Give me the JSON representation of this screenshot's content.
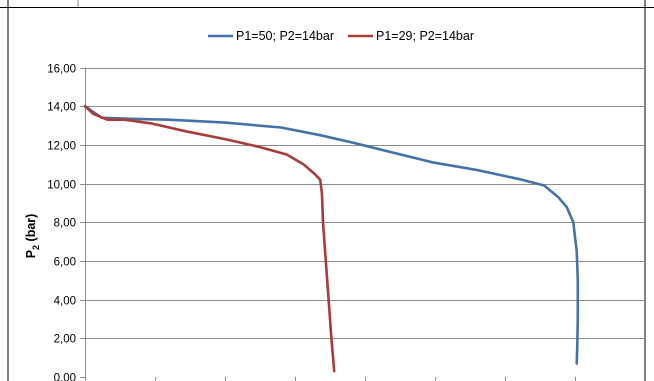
{
  "chart_data": {
    "type": "line",
    "title": "",
    "xlabel": "",
    "ylabel": "P",
    "ylabel_subscript": "2",
    "ylabel_unit": " (bar)",
    "ylim": [
      0,
      16
    ],
    "xlim": [
      0,
      1
    ],
    "yticks": [
      "0,00",
      "2,00",
      "4,00",
      "6,00",
      "8,00",
      "10,00",
      "12,00",
      "14,00",
      "16,00"
    ],
    "grid": true,
    "legend_position": "top",
    "series": [
      {
        "name": "P1=50; P2=14bar",
        "color": "#4472a8",
        "x": [
          0,
          0.03,
          0.08,
          0.15,
          0.25,
          0.35,
          0.42,
          0.48,
          0.55,
          0.62,
          0.7,
          0.78,
          0.82,
          0.845,
          0.86,
          0.872,
          0.878,
          0.88,
          0.88,
          0.879,
          0.878
        ],
        "y": [
          14.0,
          13.4,
          13.35,
          13.3,
          13.15,
          12.9,
          12.5,
          12.1,
          11.6,
          11.1,
          10.7,
          10.2,
          9.9,
          9.3,
          8.8,
          8.0,
          6.5,
          5.0,
          3.0,
          1.5,
          0.7
        ]
      },
      {
        "name": "P1=29; P2=14bar",
        "color": "#a83c3a",
        "x": [
          0,
          0.015,
          0.04,
          0.07,
          0.12,
          0.18,
          0.25,
          0.31,
          0.36,
          0.39,
          0.41,
          0.42,
          0.423,
          0.425,
          0.43,
          0.435,
          0.44,
          0.445
        ],
        "y": [
          14.0,
          13.6,
          13.3,
          13.3,
          13.1,
          12.7,
          12.3,
          11.9,
          11.5,
          11.0,
          10.5,
          10.2,
          9.5,
          8.0,
          6.0,
          4.0,
          2.0,
          0.3
        ]
      }
    ]
  }
}
